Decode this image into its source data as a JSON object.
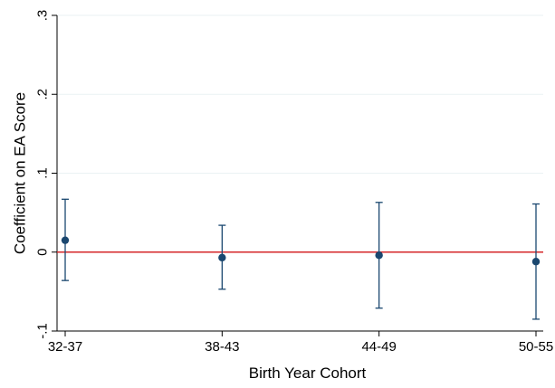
{
  "chart_data": {
    "type": "scatter",
    "title": "",
    "xlabel": "Birth Year Cohort",
    "ylabel": "Coefficient on EA Score",
    "categories": [
      "32-37",
      "38-43",
      "44-49",
      "50-55"
    ],
    "series": [
      {
        "estimates": [
          0.015,
          -0.007,
          -0.004,
          -0.012
        ],
        "ci_lower": [
          -0.036,
          -0.047,
          -0.071,
          -0.085
        ],
        "ci_upper": [
          0.067,
          0.034,
          0.063,
          0.061
        ]
      }
    ],
    "reference_line": {
      "y": 0,
      "color": "#d62728"
    },
    "yticks": [
      -0.1,
      0,
      0.1,
      0.2,
      0.3
    ],
    "ytick_labels": [
      "-.1",
      "0",
      ".1",
      ".2",
      ".3"
    ],
    "ylim": [
      -0.1,
      0.3
    ],
    "grid": "horizontal",
    "point_color": "#1a476f",
    "errorbar_color": "#1a476f"
  }
}
